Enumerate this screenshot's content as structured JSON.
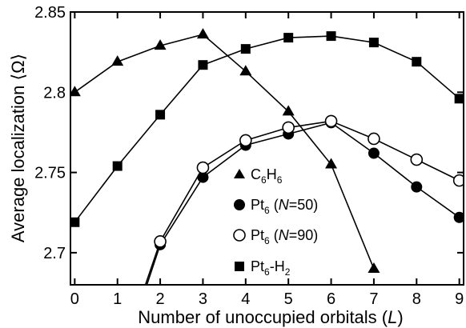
{
  "chart_data": {
    "type": "line",
    "xlabel": "Number of unoccupied orbitals (L)",
    "ylabel": "Average localization ⟨Ω⟩",
    "xlim": [
      -0.1,
      9.1
    ],
    "ylim": [
      2.68,
      2.85
    ],
    "x_ticks": [
      0,
      1,
      2,
      3,
      4,
      5,
      6,
      7,
      8,
      9
    ],
    "y_ticks": [
      2.7,
      2.75,
      2.8,
      2.85
    ],
    "y_tick_labels": [
      "2.7",
      "2.75",
      "2.8",
      "2.85"
    ],
    "grid": false,
    "legend_position": "center",
    "series": [
      {
        "name": "C6H6",
        "marker": "triangle",
        "x": [
          0,
          1,
          2,
          3,
          4,
          5,
          6,
          7
        ],
        "y": [
          2.8,
          2.819,
          2.829,
          2.836,
          2.813,
          2.788,
          2.755,
          2.69
        ]
      },
      {
        "name": "Pt6 (N=50)",
        "marker": "filled-circle",
        "x": [
          1.5,
          2,
          3,
          4,
          5,
          6,
          7,
          8,
          9
        ],
        "y": [
          2.665,
          2.705,
          2.747,
          2.767,
          2.774,
          2.781,
          2.762,
          2.741,
          2.722
        ]
      },
      {
        "name": "Pt6 (N=90)",
        "marker": "open-circle",
        "x": [
          1.5,
          2,
          3,
          4,
          5,
          6,
          7,
          8,
          9
        ],
        "y": [
          2.668,
          2.707,
          2.753,
          2.77,
          2.778,
          2.782,
          2.771,
          2.758,
          2.745
        ]
      },
      {
        "name": "Pt6-H2",
        "marker": "square",
        "x": [
          0,
          1,
          2,
          3,
          4,
          5,
          6,
          7,
          8,
          9
        ],
        "y": [
          2.719,
          2.754,
          2.786,
          2.817,
          2.827,
          2.834,
          2.835,
          2.831,
          2.819,
          2.796
        ]
      }
    ]
  },
  "legend": {
    "c6h6": {
      "a": "C",
      "b": "6",
      "c": "H",
      "d": "6"
    },
    "pt50": {
      "a": "Pt",
      "b": "6",
      "c": " (",
      "d": "N",
      "e": "=50)"
    },
    "pt90": {
      "a": "Pt",
      "b": "6",
      "c": " (",
      "d": "N",
      "e": "=90)"
    },
    "pth2": {
      "a": "Pt",
      "b": "6",
      "c": "-H",
      "d": "2"
    }
  },
  "axes": {
    "xlabel_main": "Number of unoccupied orbitals (",
    "xlabel_var": "L",
    "xlabel_end": ")",
    "ylabel": "Average localization ⟨Ω⟩"
  }
}
